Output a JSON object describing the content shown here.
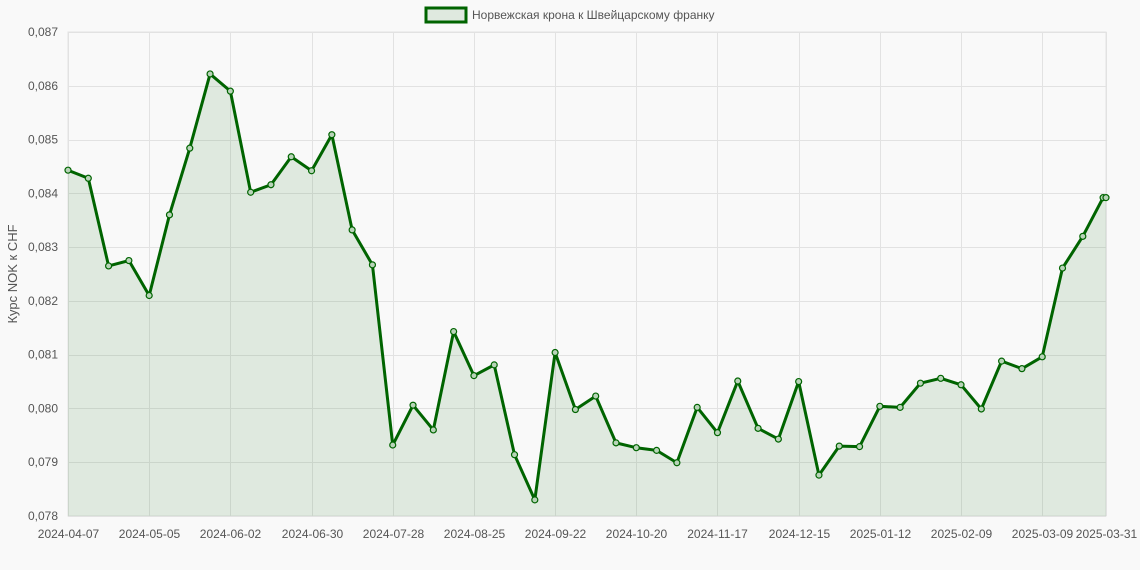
{
  "chart_data": {
    "type": "line",
    "title": "",
    "xlabel": "",
    "ylabel": "Курс NOK к CHF",
    "ylim": [
      0.078,
      0.087
    ],
    "yticks": [
      "0,087",
      "0,086",
      "0,085",
      "0,084",
      "0,083",
      "0,082",
      "0,081",
      "0,080",
      "0,079",
      "0,078"
    ],
    "ytick_values": [
      0.087,
      0.086,
      0.085,
      0.084,
      0.083,
      0.082,
      0.081,
      0.08,
      0.079,
      0.078
    ],
    "xticks": [
      "2024-04-07",
      "2024-05-05",
      "2024-06-02",
      "2024-06-30",
      "2024-07-28",
      "2024-08-25",
      "2024-09-22",
      "2024-10-20",
      "2024-11-17",
      "2024-12-15",
      "2025-01-12",
      "2025-02-09",
      "2025-03-09",
      "2025-03-31"
    ],
    "grid": true,
    "legend": {
      "position": "top-center",
      "entries": [
        "Норвежская крона к Швейцарскому франку"
      ]
    },
    "series": [
      {
        "name": "Норвежская крона к Швейцарскому франку",
        "color": "#006400",
        "fill": "rgba(0,100,0,0.1)",
        "x": [
          "2024-04-07",
          "2024-04-14",
          "2024-04-21",
          "2024-04-28",
          "2024-05-05",
          "2024-05-12",
          "2024-05-19",
          "2024-05-26",
          "2024-06-02",
          "2024-06-09",
          "2024-06-16",
          "2024-06-23",
          "2024-06-30",
          "2024-07-07",
          "2024-07-14",
          "2024-07-21",
          "2024-07-28",
          "2024-08-04",
          "2024-08-11",
          "2024-08-18",
          "2024-08-25",
          "2024-09-01",
          "2024-09-08",
          "2024-09-15",
          "2024-09-22",
          "2024-09-29",
          "2024-10-06",
          "2024-10-13",
          "2024-10-20",
          "2024-10-27",
          "2024-11-03",
          "2024-11-10",
          "2024-11-17",
          "2024-11-24",
          "2024-12-01",
          "2024-12-08",
          "2024-12-15",
          "2024-12-22",
          "2024-12-29",
          "2025-01-05",
          "2025-01-12",
          "2025-01-19",
          "2025-01-26",
          "2025-02-02",
          "2025-02-09",
          "2025-02-16",
          "2025-02-23",
          "2025-03-02",
          "2025-03-09",
          "2025-03-16",
          "2025-03-23",
          "2025-03-30",
          "2025-03-31"
        ],
        "values": [
          0.08443,
          0.08428,
          0.08265,
          0.08275,
          0.0821,
          0.0836,
          0.08484,
          0.08622,
          0.0859,
          0.08402,
          0.08416,
          0.08468,
          0.08442,
          0.08509,
          0.08332,
          0.08267,
          0.07932,
          0.08006,
          0.0796,
          0.08143,
          0.08061,
          0.08081,
          0.07914,
          0.0783,
          0.08104,
          0.07998,
          0.08023,
          0.07936,
          0.07927,
          0.07922,
          0.07899,
          0.08002,
          0.07955,
          0.08051,
          0.07963,
          0.07943,
          0.0805,
          0.07876,
          0.0793,
          0.07929,
          0.08004,
          0.08002,
          0.08047,
          0.08056,
          0.08044,
          0.07999,
          0.08088,
          0.08074,
          0.08096,
          0.08261,
          0.0832,
          0.08392,
          0.08392
        ]
      }
    ]
  }
}
